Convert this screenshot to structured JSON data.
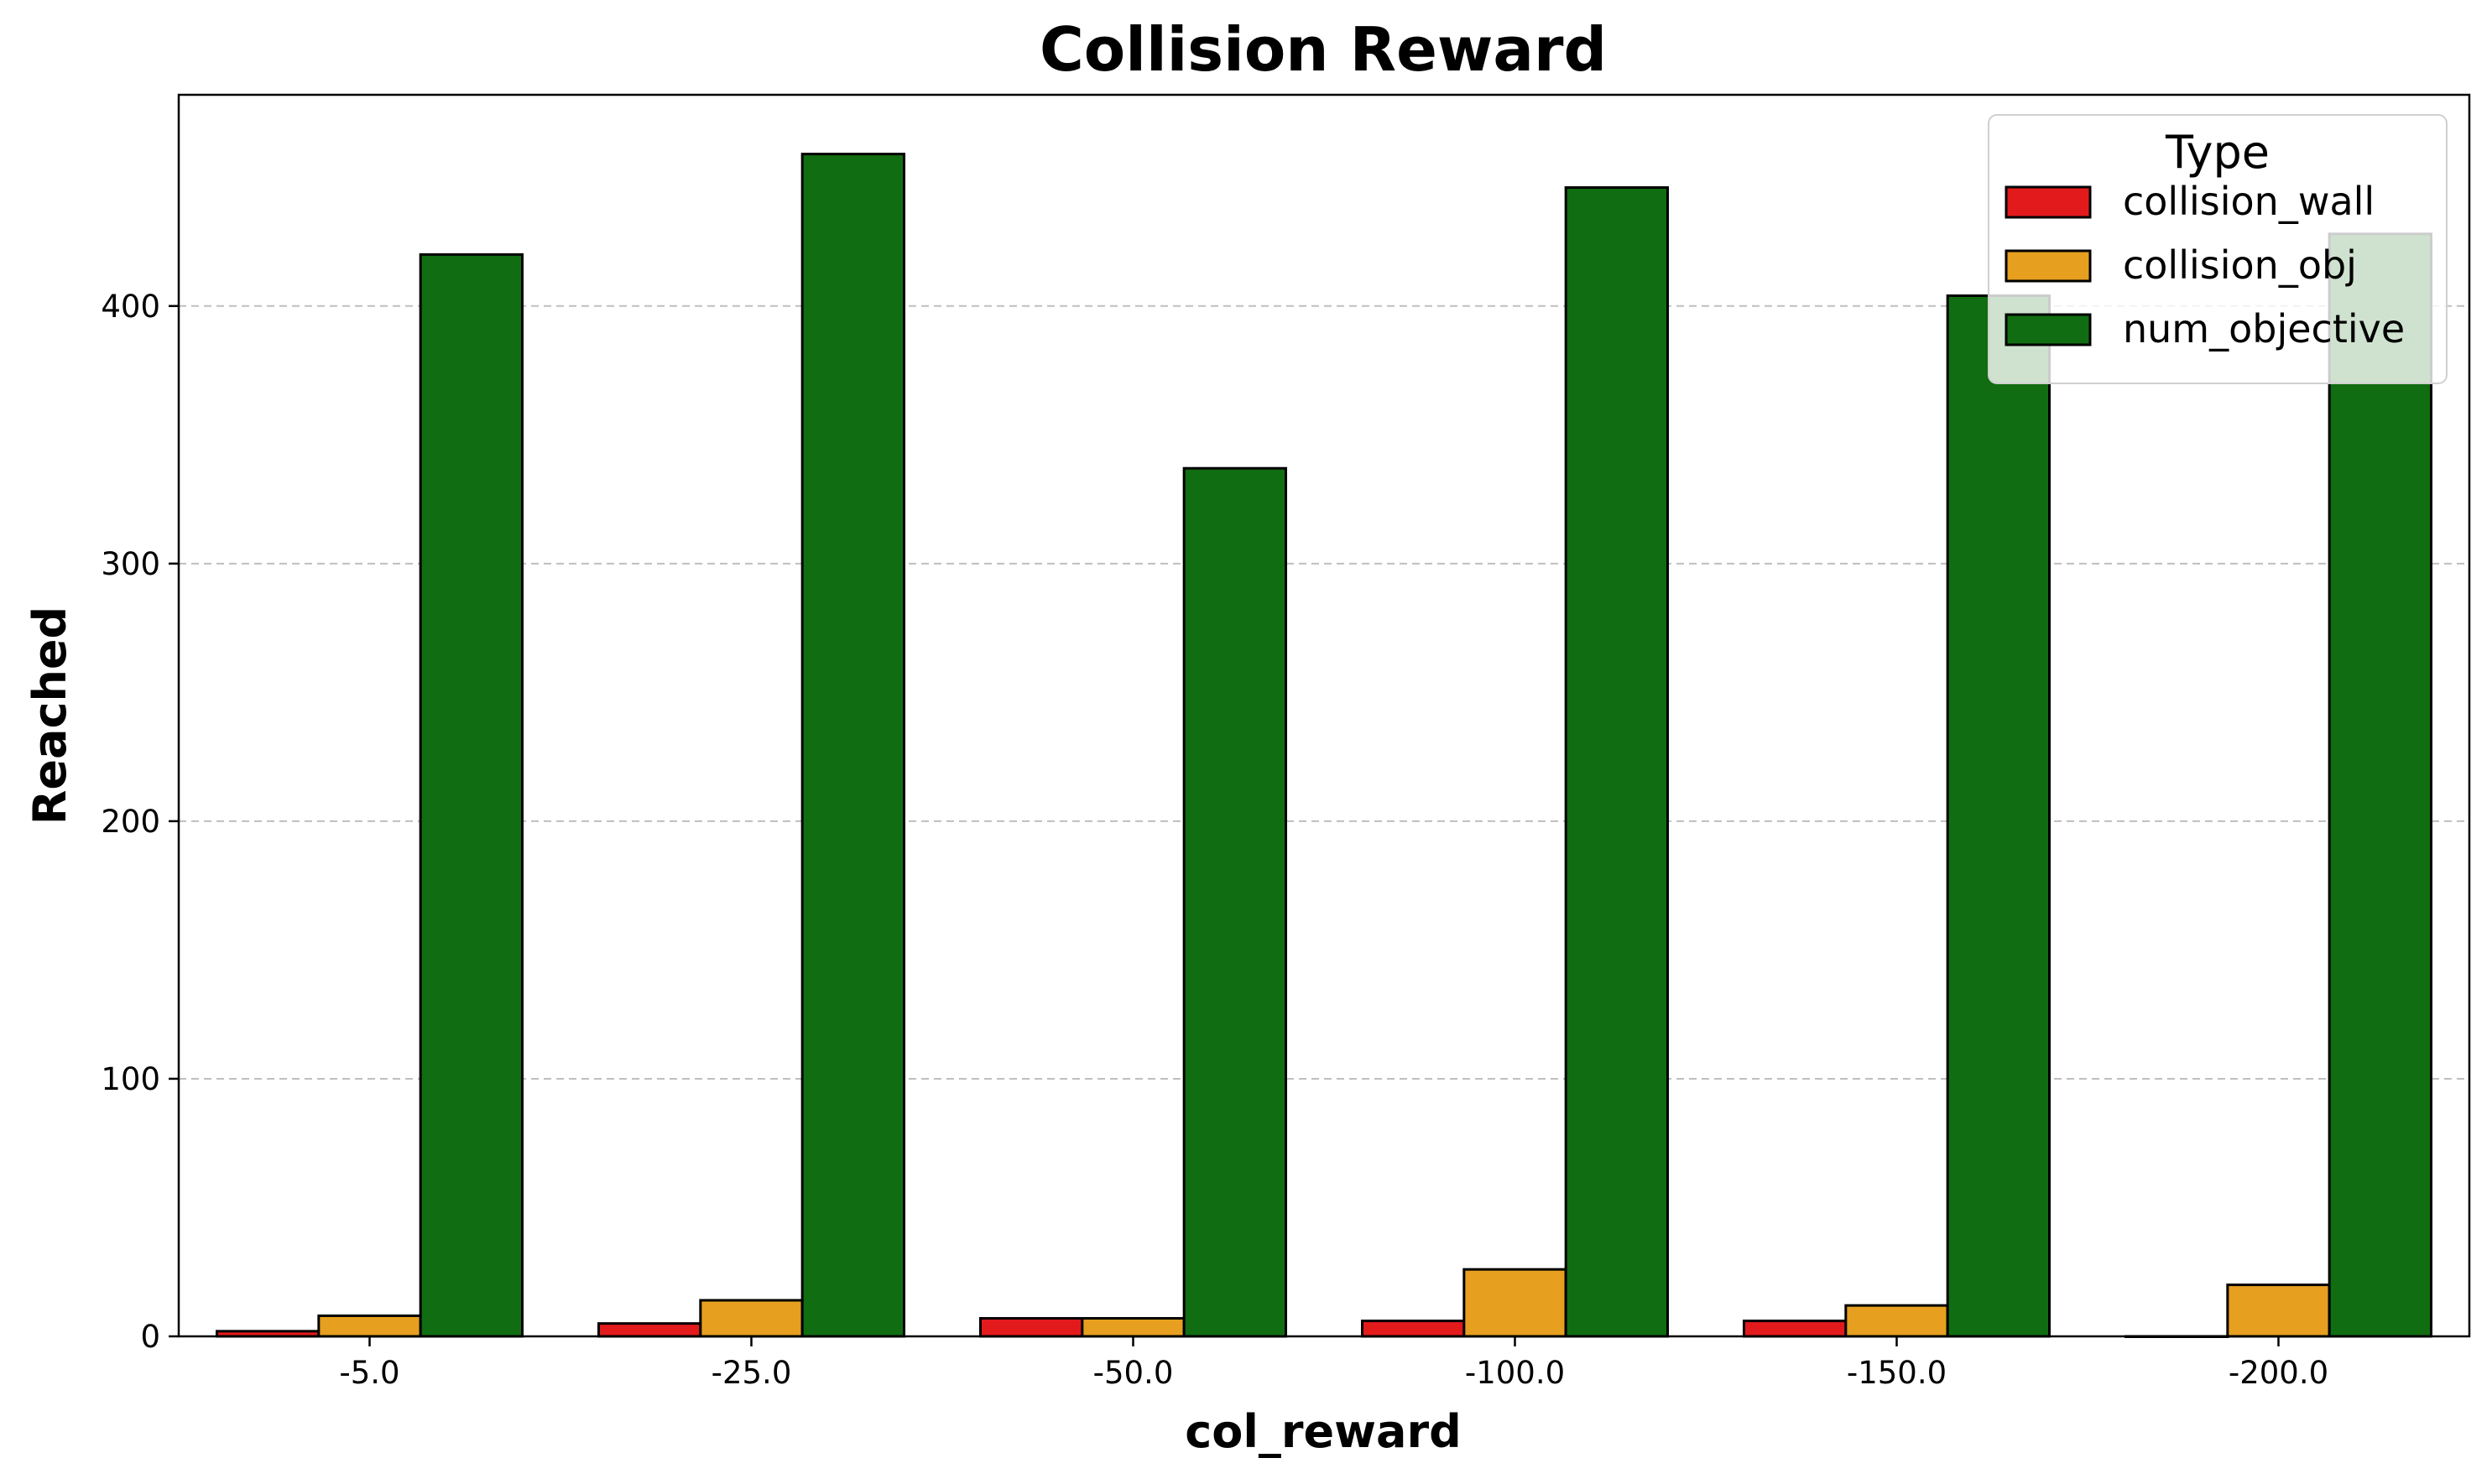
{
  "chart_data": {
    "type": "bar",
    "title": "Collision Reward",
    "xlabel": "col_reward",
    "ylabel": "Reached",
    "categories": [
      "-5.0",
      "-25.0",
      "-50.0",
      "-100.0",
      "-150.0",
      "-200.0"
    ],
    "series": [
      {
        "name": "collision_wall",
        "color": "#e31a1c",
        "values": [
          2,
          5,
          7,
          6,
          6,
          0
        ]
      },
      {
        "name": "collision_obj",
        "color": "#e69f1f",
        "values": [
          8,
          14,
          7,
          26,
          12,
          20
        ]
      },
      {
        "name": "num_objective",
        "color": "#116d11",
        "values": [
          420,
          459,
          337,
          446,
          404,
          428
        ]
      }
    ],
    "ylim": [
      0,
      482
    ],
    "yticks": [
      0,
      100,
      200,
      300,
      400
    ],
    "grid": "y-dashed",
    "legend": {
      "title": "Type",
      "position": "top-right"
    }
  }
}
